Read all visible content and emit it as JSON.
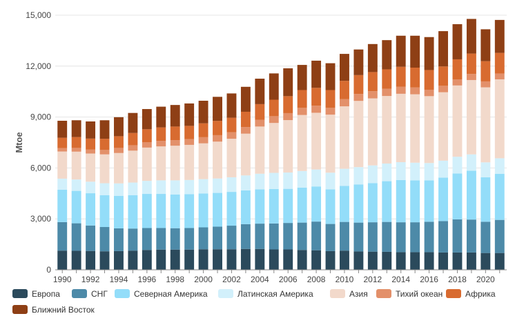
{
  "chart_data": {
    "type": "bar",
    "stacked": true,
    "ylabel": "Mtoe",
    "xlabel": "",
    "ylim": [
      0,
      15000
    ],
    "yticks": [
      0,
      3000,
      6000,
      9000,
      12000,
      15000
    ],
    "y_tick_labels": [
      "0",
      "3,000",
      "6,000",
      "9,000",
      "12,000",
      "15,000"
    ],
    "x_tick_labels": [
      "1990",
      "1992",
      "1994",
      "1996",
      "1998",
      "2000",
      "2002",
      "2004",
      "2006",
      "2008",
      "2010",
      "2012",
      "2014",
      "2016",
      "2018",
      "2020"
    ],
    "grid": true,
    "legend_position": "bottom",
    "categories": [
      "1990",
      "1991",
      "1992",
      "1993",
      "1994",
      "1995",
      "1996",
      "1997",
      "1998",
      "1999",
      "2000",
      "2001",
      "2002",
      "2003",
      "2004",
      "2005",
      "2006",
      "2007",
      "2008",
      "2009",
      "2010",
      "2011",
      "2012",
      "2013",
      "2014",
      "2015",
      "2016",
      "2017",
      "2018",
      "2019",
      "2020",
      "2021"
    ],
    "series": [
      {
        "name": "Европа",
        "color": "#2b4a5c",
        "values": [
          1130,
          1120,
          1110,
          1090,
          1100,
          1130,
          1170,
          1190,
          1190,
          1190,
          1210,
          1210,
          1210,
          1230,
          1230,
          1200,
          1200,
          1170,
          1150,
          1100,
          1130,
          1080,
          1070,
          1060,
          1040,
          1040,
          1040,
          1020,
          1020,
          1020,
          990,
          990
        ]
      },
      {
        "name": "СНГ",
        "color": "#4d8aa8",
        "values": [
          1680,
          1620,
          1500,
          1430,
          1340,
          1300,
          1290,
          1270,
          1260,
          1270,
          1290,
          1330,
          1390,
          1460,
          1490,
          1530,
          1560,
          1610,
          1690,
          1600,
          1690,
          1700,
          1730,
          1760,
          1760,
          1760,
          1790,
          1850,
          1950,
          1940,
          1840,
          1950
        ]
      },
      {
        "name": "Северная Америка",
        "color": "#93ddf9",
        "values": [
          1910,
          1910,
          1900,
          1880,
          1920,
          1970,
          2010,
          2010,
          1990,
          2000,
          2000,
          1990,
          1990,
          1990,
          2020,
          2030,
          2010,
          2060,
          2070,
          2040,
          2120,
          2250,
          2310,
          2400,
          2490,
          2470,
          2440,
          2560,
          2700,
          2880,
          2620,
          2710
        ]
      },
      {
        "name": "Латинская Америка",
        "color": "#d2f0fb",
        "values": [
          650,
          670,
          680,
          700,
          730,
          740,
          770,
          800,
          830,
          830,
          840,
          850,
          860,
          880,
          920,
          950,
          960,
          980,
          1000,
          980,
          1010,
          1020,
          1040,
          1040,
          1050,
          1040,
          1020,
          1000,
          990,
          960,
          880,
          920
        ]
      },
      {
        "name": "Азия",
        "color": "#f2d9cb",
        "values": [
          1600,
          1640,
          1660,
          1700,
          1790,
          1880,
          1960,
          2000,
          2040,
          2070,
          2110,
          2170,
          2270,
          2460,
          2780,
          2940,
          3090,
          3300,
          3340,
          3420,
          3680,
          3900,
          3950,
          3980,
          4030,
          4030,
          3940,
          4030,
          4200,
          4380,
          4420,
          4650
        ]
      },
      {
        "name": "Тихий океан",
        "color": "#e3906a",
        "values": [
          200,
          220,
          230,
          260,
          300,
          320,
          320,
          330,
          330,
          340,
          360,
          380,
          380,
          390,
          400,
          400,
          410,
          420,
          420,
          400,
          420,
          410,
          420,
          420,
          410,
          400,
          380,
          380,
          360,
          360,
          350,
          340
        ]
      },
      {
        "name": "Африка",
        "color": "#d86b30",
        "values": [
          610,
          640,
          650,
          660,
          690,
          720,
          760,
          790,
          800,
          780,
          820,
          840,
          860,
          900,
          920,
          970,
          1000,
          1050,
          1050,
          1050,
          1080,
          1110,
          1130,
          1150,
          1180,
          1170,
          1160,
          1140,
          1180,
          1200,
          1190,
          1220
        ]
      },
      {
        "name": "Ближний Восток",
        "color": "#8e3f15",
        "values": [
          1000,
          990,
          1010,
          1090,
          1120,
          1180,
          1190,
          1220,
          1270,
          1320,
          1330,
          1420,
          1430,
          1470,
          1500,
          1550,
          1640,
          1480,
          1600,
          1580,
          1590,
          1510,
          1650,
          1720,
          1830,
          1880,
          1940,
          2080,
          2070,
          2040,
          1880,
          1940
        ]
      }
    ]
  }
}
